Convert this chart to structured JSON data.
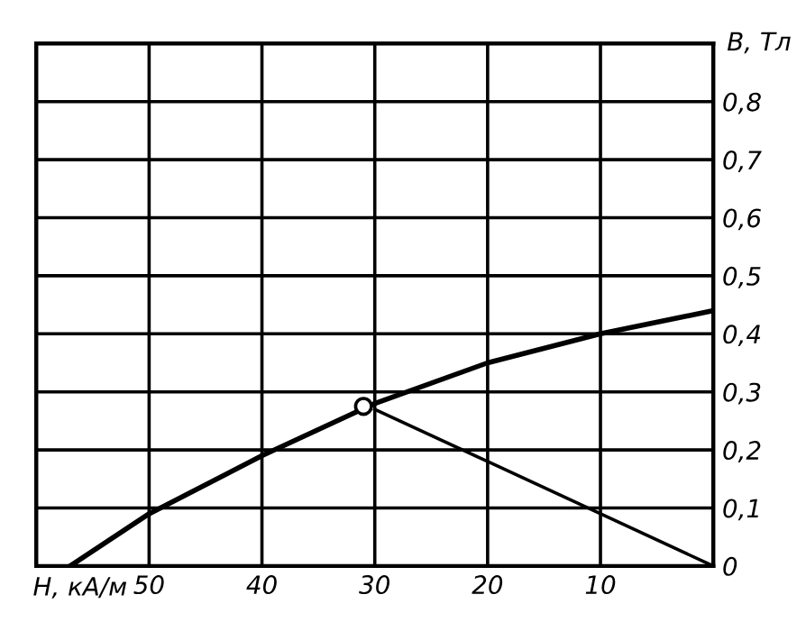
{
  "chart_data": {
    "type": "line",
    "xlabel": "H, кА/м",
    "ylabel": "B, Тл",
    "xlim": [
      60,
      0
    ],
    "ylim": [
      0,
      0.9
    ],
    "xticks": [
      50,
      40,
      30,
      20,
      10,
      {
        "value": 0,
        "label": null
      }
    ],
    "yticks": [
      {
        "value": 0,
        "label": "0"
      },
      {
        "value": 0.1,
        "label": "0,1"
      },
      {
        "value": 0.2,
        "label": "0,2"
      },
      {
        "value": 0.3,
        "label": "0,3"
      },
      {
        "value": 0.4,
        "label": "0,4"
      },
      {
        "value": 0.5,
        "label": "0,5"
      },
      {
        "value": 0.6,
        "label": "0,6"
      },
      {
        "value": 0.7,
        "label": "0,7"
      },
      {
        "value": 0.8,
        "label": "0,8"
      }
    ],
    "grid": true,
    "legend": false,
    "series": [
      {
        "color": "#000000",
        "x": [
          57,
          50,
          40,
          30,
          20,
          10,
          0
        ],
        "values": [
          0,
          0.09,
          0.19,
          0.28,
          0.35,
          0.4,
          0.44
        ]
      },
      {
        "type": "line",
        "color": "#000000",
        "x": [
          30,
          20,
          10,
          0
        ],
        "values": [
          0.27,
          0.18,
          0.09,
          0
        ]
      },
      {
        "type": "scatter",
        "color": "#000000",
        "marker": "circle",
        "x": [
          31
        ],
        "values": [
          0.275
        ]
      }
    ]
  }
}
